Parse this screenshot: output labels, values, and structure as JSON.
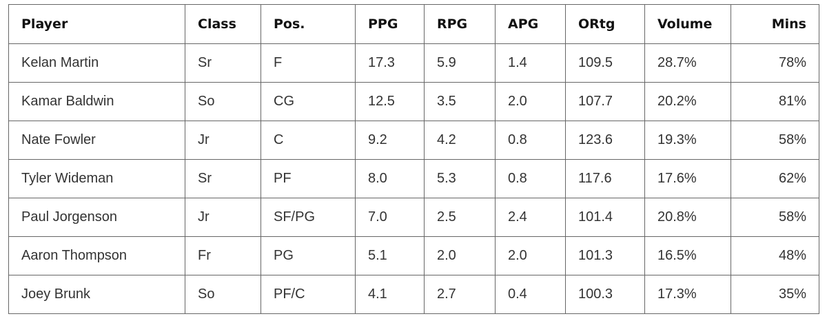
{
  "table": {
    "header": [
      "Player",
      "Class",
      "Pos.",
      "PPG",
      "RPG",
      "APG",
      "ORtg",
      "Volume",
      "Mins"
    ],
    "rows": [
      [
        "Kelan Martin",
        "Sr",
        "F",
        "17.3",
        "5.9",
        "1.4",
        "109.5",
        "28.7%",
        "78%"
      ],
      [
        "Kamar Baldwin",
        "So",
        "CG",
        "12.5",
        "3.5",
        "2.0",
        "107.7",
        "20.2%",
        "81%"
      ],
      [
        "Nate Fowler",
        "Jr",
        "C",
        "9.2",
        "4.2",
        "0.8",
        "123.6",
        "19.3%",
        "58%"
      ],
      [
        "Tyler Wideman",
        "Sr",
        "PF",
        "8.0",
        "5.3",
        "0.8",
        "117.6",
        "17.6%",
        "62%"
      ],
      [
        "Paul Jorgenson",
        "Jr",
        "SF/PG",
        "7.0",
        "2.5",
        "2.4",
        "101.4",
        "20.8%",
        "58%"
      ],
      [
        "Aaron Thompson",
        "Fr",
        "PG",
        "5.1",
        "2.0",
        "2.0",
        "101.3",
        "16.5%",
        "48%"
      ],
      [
        "Joey Brunk",
        "So",
        "PF/C",
        "4.1",
        "2.7",
        "0.4",
        "100.3",
        "17.3%",
        "35%"
      ]
    ]
  }
}
